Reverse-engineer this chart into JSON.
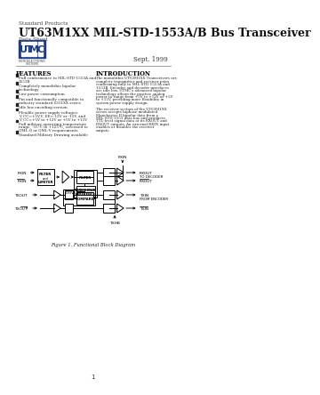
{
  "title_small": "Standard Products",
  "title_main": "UT63M1XX MIL-STD-1553A/B Bus Transceiver",
  "title_sub": "Data Sheet",
  "date": "Sept. 1999",
  "bg_color": "#ffffff",
  "utmc_box_color": "#1a3a8a",
  "utmc_letters": [
    "U",
    "T",
    "M",
    "C"
  ],
  "features_title": "FEATURES",
  "features": [
    "Full conformance to MIL-STD-1553A and 1553B",
    "Completely monolithic bipolar technology",
    "Low power consumption",
    "Pin and functionally compatible to industry standard 6311XX series",
    "Idle low encoding version",
    "Flexible power supply voltages: V_CC=+5V,V_EE=-12V or -15V, and V_CC=+5V to +12V or +5V to +15V",
    "Full military operating temperature range, -55°C to +125°C, screened to QML-Q or QML-V requirements",
    "Standard Military Drawing available"
  ],
  "intro_title": "INTRODUCTION",
  "intro_text1": "The monolithic UT63M1XX Transceivers are complete transmitter and receiver pairs conforming fully to MIL-STD-1553A and 1553B. Encoder and decoder interfaces are idle low. UTMC's advanced bipolar technology allows the positive analog power to range from +5V to +12V or +5V to +15V, providing more flexibility in system power supply design.",
  "intro_text2": "The receiver section of the UT63M1XX series accepts biphase-modulated Manchester II bipolar data from a MIL-STD-1553 data bus and produces TTL-level signal data at its RXOUT and RXOUT outputs. An external RXIN input enables or disables the receiver outputs.",
  "fig_caption": "Figure 1. Functional Block Diagram",
  "page_num": "1"
}
